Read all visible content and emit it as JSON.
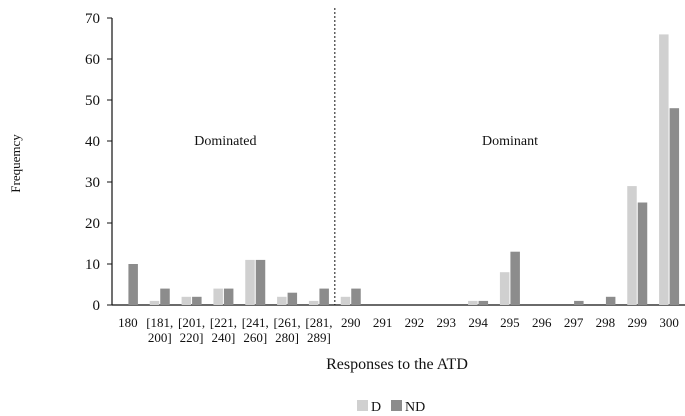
{
  "chart_data": {
    "type": "bar",
    "title": "",
    "xlabel": "Responses to the ATD",
    "ylabel": "Frequemcy",
    "ylim": [
      0,
      70
    ],
    "yticks": [
      0,
      10,
      20,
      30,
      40,
      50,
      60,
      70
    ],
    "grid": false,
    "legend_position": "bottom-center",
    "categories": [
      {
        "line1": "180",
        "line2": ""
      },
      {
        "line1": "[181,",
        "line2": "200]"
      },
      {
        "line1": "[201,",
        "line2": "220]"
      },
      {
        "line1": "[221,",
        "line2": "240]"
      },
      {
        "line1": "[241,",
        "line2": "260]"
      },
      {
        "line1": "[261,",
        "line2": "280]"
      },
      {
        "line1": "[281,",
        "line2": "289]"
      },
      {
        "line1": "290",
        "line2": ""
      },
      {
        "line1": "291",
        "line2": ""
      },
      {
        "line1": "292",
        "line2": ""
      },
      {
        "line1": "293",
        "line2": ""
      },
      {
        "line1": "294",
        "line2": ""
      },
      {
        "line1": "295",
        "line2": ""
      },
      {
        "line1": "296",
        "line2": ""
      },
      {
        "line1": "297",
        "line2": ""
      },
      {
        "line1": "298",
        "line2": ""
      },
      {
        "line1": "299",
        "line2": ""
      },
      {
        "line1": "300",
        "line2": ""
      }
    ],
    "series": [
      {
        "name": "D",
        "color": "#d0d0d0",
        "values": [
          0,
          1,
          2,
          4,
          11,
          2,
          1,
          2,
          0,
          0,
          0,
          1,
          8,
          0,
          0,
          0,
          29,
          66
        ]
      },
      {
        "name": "ND",
        "color": "#8c8c8c",
        "values": [
          10,
          4,
          2,
          4,
          11,
          3,
          4,
          4,
          0,
          0,
          0,
          1,
          13,
          0,
          1,
          2,
          25,
          48
        ]
      }
    ],
    "annotations": [
      {
        "text": "Dominated",
        "region": "left"
      },
      {
        "text": "Dominant",
        "region": "right"
      }
    ],
    "divider_after_category": "[281,"
  }
}
